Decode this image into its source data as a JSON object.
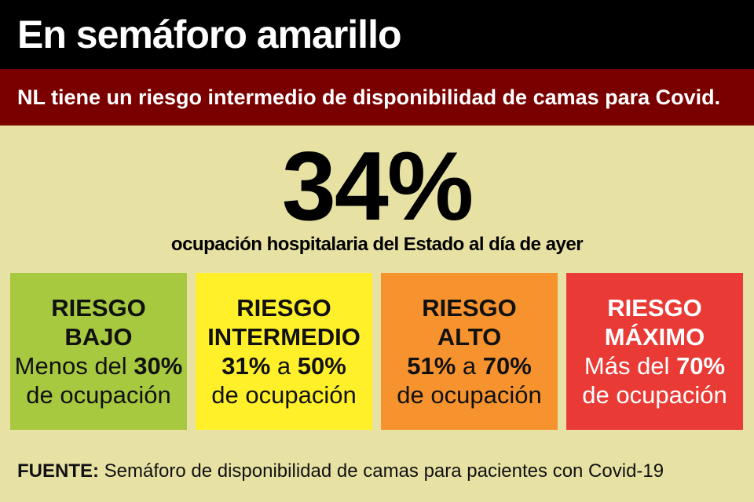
{
  "header": {
    "title": "En semáforo amarillo"
  },
  "subheader": {
    "text": "NL tiene un riesgo intermedio de disponibilidad de camas para Covid."
  },
  "main": {
    "big_number": "34%",
    "caption": "ocupación hospitalaria del Estado al día de ayer"
  },
  "boxes": [
    {
      "title_1": "RIESGO",
      "title_2": "BAJO",
      "range_prefix": "Menos del ",
      "range_value": "30%",
      "desc": "de ocupación",
      "color": "#a6c940"
    },
    {
      "title_1": "RIESGO",
      "title_2": "INTERMEDIO",
      "range_from": "31%",
      "range_sep": " a ",
      "range_to": "50%",
      "desc": "de ocupación",
      "color": "#fff02a"
    },
    {
      "title_1": "RIESGO",
      "title_2": "ALTO",
      "range_from": "51%",
      "range_sep": " a ",
      "range_to": "70%",
      "desc": "de ocupación",
      "color": "#f7932e"
    },
    {
      "title_1": "RIESGO",
      "title_2": "MÁXIMO",
      "range_prefix": "Más del ",
      "range_value": "70%",
      "desc": "de ocupación",
      "color": "#ea3a35"
    }
  ],
  "footer": {
    "label": "FUENTE:",
    "text": " Semáforo de disponibilidad de camas para pacientes con Covid-19"
  }
}
